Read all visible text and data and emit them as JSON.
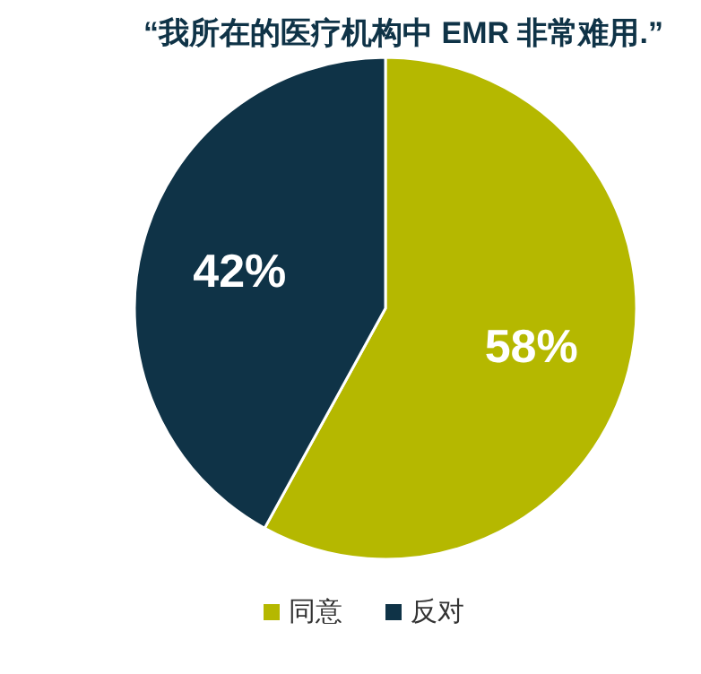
{
  "chart_data": {
    "type": "pie",
    "title": "“我所在的医疗机构中 EMR 非常难用.”",
    "categories": [
      "同意",
      "反对"
    ],
    "values": [
      58,
      42
    ],
    "colors": [
      "#b5b800",
      "#0f3347"
    ],
    "value_labels": [
      "58%",
      "42%"
    ],
    "legend": "bottom"
  }
}
